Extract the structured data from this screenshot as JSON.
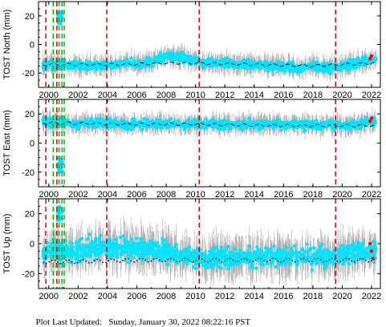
{
  "footer": {
    "label": "Plot Last Updated:",
    "timestamp": "Sunday, January 30, 2022 08:22:16 PST"
  },
  "colors": {
    "scatter": "#00e5ff",
    "error_bars": "#aaaaaa",
    "model": "#000000",
    "recent": "#ff0000",
    "event_red": "#dd0000",
    "event_green": "#00bb00"
  },
  "chart_data": [
    {
      "type": "scatter",
      "ylabel": "TOST North (mm)",
      "xlim": [
        1999.3,
        2022.6
      ],
      "ylim": [
        -30,
        30
      ],
      "yticks": [
        -20,
        0,
        20
      ],
      "xticks": [
        "2000",
        "2002",
        "2004",
        "2006",
        "2008",
        "2010",
        "2012",
        "2014",
        "2016",
        "2018",
        "2020",
        "2022"
      ],
      "series": [
        {
          "x": [
            1999.6,
            2000,
            2001,
            2002,
            2003,
            2004,
            2005,
            2006,
            2007,
            2008,
            2009,
            2010,
            2011,
            2012,
            2013,
            2014,
            2015,
            2016,
            2017,
            2018,
            2019,
            2020,
            2021,
            2022
          ],
          "y": [
            -15,
            -14,
            -14,
            -14,
            -15,
            -14,
            -13,
            -14,
            -12,
            -8,
            -9,
            -12,
            -13,
            -13,
            -14,
            -14,
            -15,
            -15,
            -16,
            -15,
            -17,
            -15,
            -13,
            -11
          ]
        }
      ],
      "model": {
        "x": [
          1999.6,
          2005,
          2008,
          2010,
          2014,
          2018,
          2020,
          2022.3
        ],
        "y": [
          -14,
          -14,
          -13,
          -13,
          -14,
          -15,
          -14,
          -13
        ]
      },
      "excursions": [
        {
          "x": 2000.75,
          "y": 18
        }
      ],
      "recent_points": [
        {
          "x": 2021.9,
          "y": -10
        },
        {
          "x": 2022.0,
          "y": -8
        }
      ],
      "event_lines": {
        "red": [
          1999.8,
          2000.55,
          2003.95,
          2010.25,
          2019.55
        ],
        "green": [
          2000.3,
          2000.7,
          2000.9,
          2001.05
        ]
      }
    },
    {
      "type": "scatter",
      "ylabel": "TOST East (mm)",
      "xlim": [
        1999.3,
        2022.6
      ],
      "ylim": [
        -30,
        30
      ],
      "yticks": [
        -20,
        0,
        20
      ],
      "xticks": [
        "2000",
        "2002",
        "2004",
        "2006",
        "2008",
        "2010",
        "2012",
        "2014",
        "2016",
        "2018",
        "2020",
        "2022"
      ],
      "series": [
        {
          "x": [
            1999.6,
            2000,
            2001,
            2002,
            2003,
            2004,
            2005,
            2006,
            2007,
            2008,
            2009,
            2010,
            2011,
            2012,
            2013,
            2014,
            2015,
            2016,
            2017,
            2018,
            2019,
            2020,
            2021,
            2022
          ],
          "y": [
            15,
            14,
            14,
            13,
            14,
            13,
            13,
            13,
            13,
            13,
            13,
            13,
            13,
            13,
            13,
            13,
            13,
            13,
            13,
            12,
            13,
            12,
            13,
            15
          ]
        }
      ],
      "model": {
        "x": [
          1999.6,
          2005,
          2010,
          2015,
          2020,
          2022.3
        ],
        "y": [
          14,
          13,
          13,
          12,
          12,
          12
        ]
      },
      "excursions": [
        {
          "x": 2000.75,
          "y": -15
        }
      ],
      "recent_points": [
        {
          "x": 2021.9,
          "y": 15
        },
        {
          "x": 2022.0,
          "y": 17
        }
      ],
      "event_lines": {
        "red": [
          1999.8,
          2000.55,
          2003.95,
          2010.25,
          2019.55
        ],
        "green": [
          2000.3,
          2000.7,
          2000.9,
          2001.05
        ]
      }
    },
    {
      "type": "scatter",
      "ylabel": "TOST Up (mm)",
      "xlim": [
        1999.3,
        2022.6
      ],
      "ylim": [
        -30,
        30
      ],
      "yticks": [
        -20,
        0,
        20
      ],
      "xticks": [
        "2000",
        "2002",
        "2004",
        "2006",
        "2008",
        "2010",
        "2012",
        "2014",
        "2016",
        "2018",
        "2020",
        "2022"
      ],
      "series": [
        {
          "x": [
            1999.6,
            2000,
            2001,
            2002,
            2003,
            2004,
            2005,
            2006,
            2007,
            2008,
            2009,
            2010,
            2011,
            2012,
            2013,
            2014,
            2015,
            2016,
            2017,
            2018,
            2019,
            2020,
            2021,
            2022
          ],
          "y": [
            -7,
            -4,
            -5,
            -6,
            -3,
            -2,
            -4,
            -3,
            -4,
            -6,
            -8,
            -9,
            -10,
            -9,
            -10,
            -9,
            -8,
            -9,
            -8,
            -9,
            -10,
            -8,
            -6,
            -5
          ]
        }
      ],
      "model": {
        "x": [
          1999.6,
          2002,
          2006,
          2010,
          2014,
          2018,
          2022.3
        ],
        "y": [
          -12,
          -12,
          -11,
          -11,
          -11,
          -11,
          -11
        ]
      },
      "excursions": [
        {
          "x": 2000.75,
          "y": 20
        }
      ],
      "recent_points": [
        {
          "x": 2021.9,
          "y": 0
        },
        {
          "x": 2022.0,
          "y": -5
        },
        {
          "x": 2022.1,
          "y": -10
        }
      ],
      "event_lines": {
        "red": [
          1999.8,
          2000.55,
          2003.95,
          2010.25,
          2019.55
        ],
        "green": [
          2000.3,
          2000.7,
          2000.9,
          2001.05
        ]
      }
    }
  ]
}
